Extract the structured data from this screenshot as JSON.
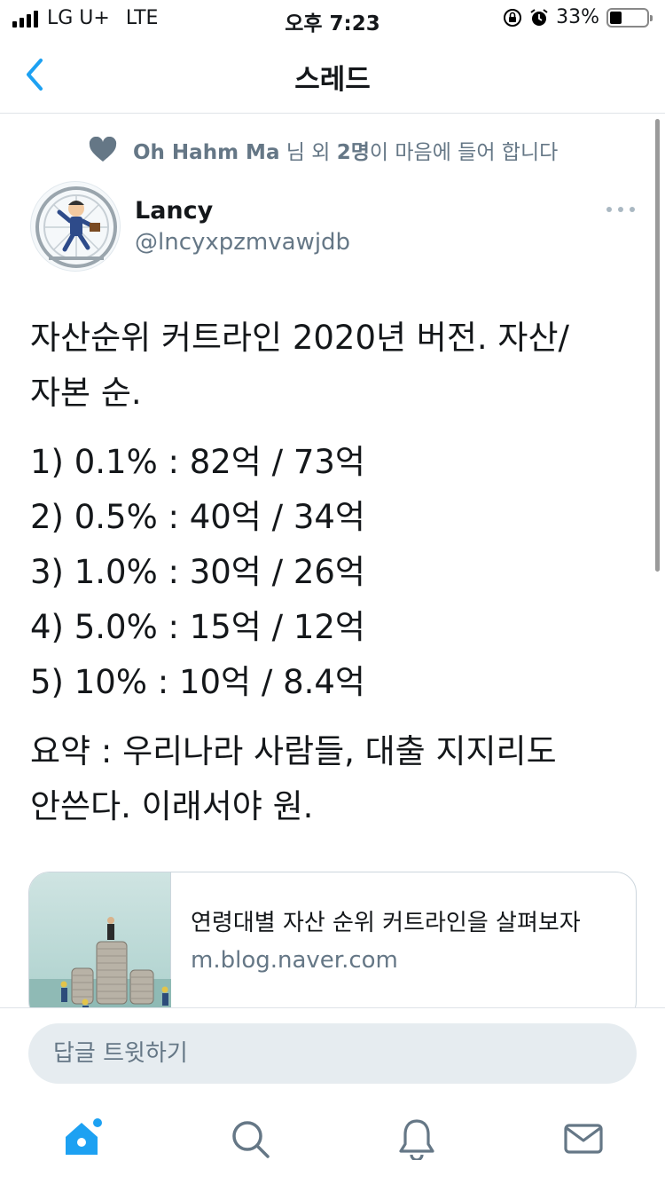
{
  "status_bar": {
    "carrier": "LG U+",
    "network": "LTE",
    "time": "오후 7:23",
    "battery": "33%",
    "battery_level": 0.33
  },
  "nav": {
    "title": "스레드",
    "back_icon": "chevron-left-icon"
  },
  "social_context": {
    "icon": "heart-icon",
    "names": "Oh Hahm Ma",
    "suffix_1": "님 외",
    "count": "2명",
    "suffix_2": "이 마음에 들어 합니다"
  },
  "tweet": {
    "author_name": "Lancy",
    "author_handle": "@lncyxpzmvawjdb",
    "more_icon": "more-icon",
    "lines": [
      "자산순위 커트라인 2020년 버전. 자산/",
      "자본 순.",
      "1) 0.1% : 82억 / 73억",
      "2) 0.5% : 40억 / 34억",
      "3) 1.0% : 30억 / 26억",
      "4) 5.0% : 15억 / 12억",
      "5) 10% : 10억 / 8.4억",
      "요약 : 우리나라 사람들, 대출 지지리도",
      "안쓴다. 이래서야 원."
    ]
  },
  "link_card": {
    "title": "연령대별 자산 순위 커트라인을 살펴보자",
    "domain": "m.blog.naver.com"
  },
  "reply": {
    "placeholder": "답글 트윗하기"
  },
  "tabs": [
    "home-icon",
    "search-icon",
    "notifications-icon",
    "messages-icon"
  ],
  "colors": {
    "accent": "#1da1f2",
    "secondary_text": "#657786",
    "border": "#dfe3e8"
  }
}
